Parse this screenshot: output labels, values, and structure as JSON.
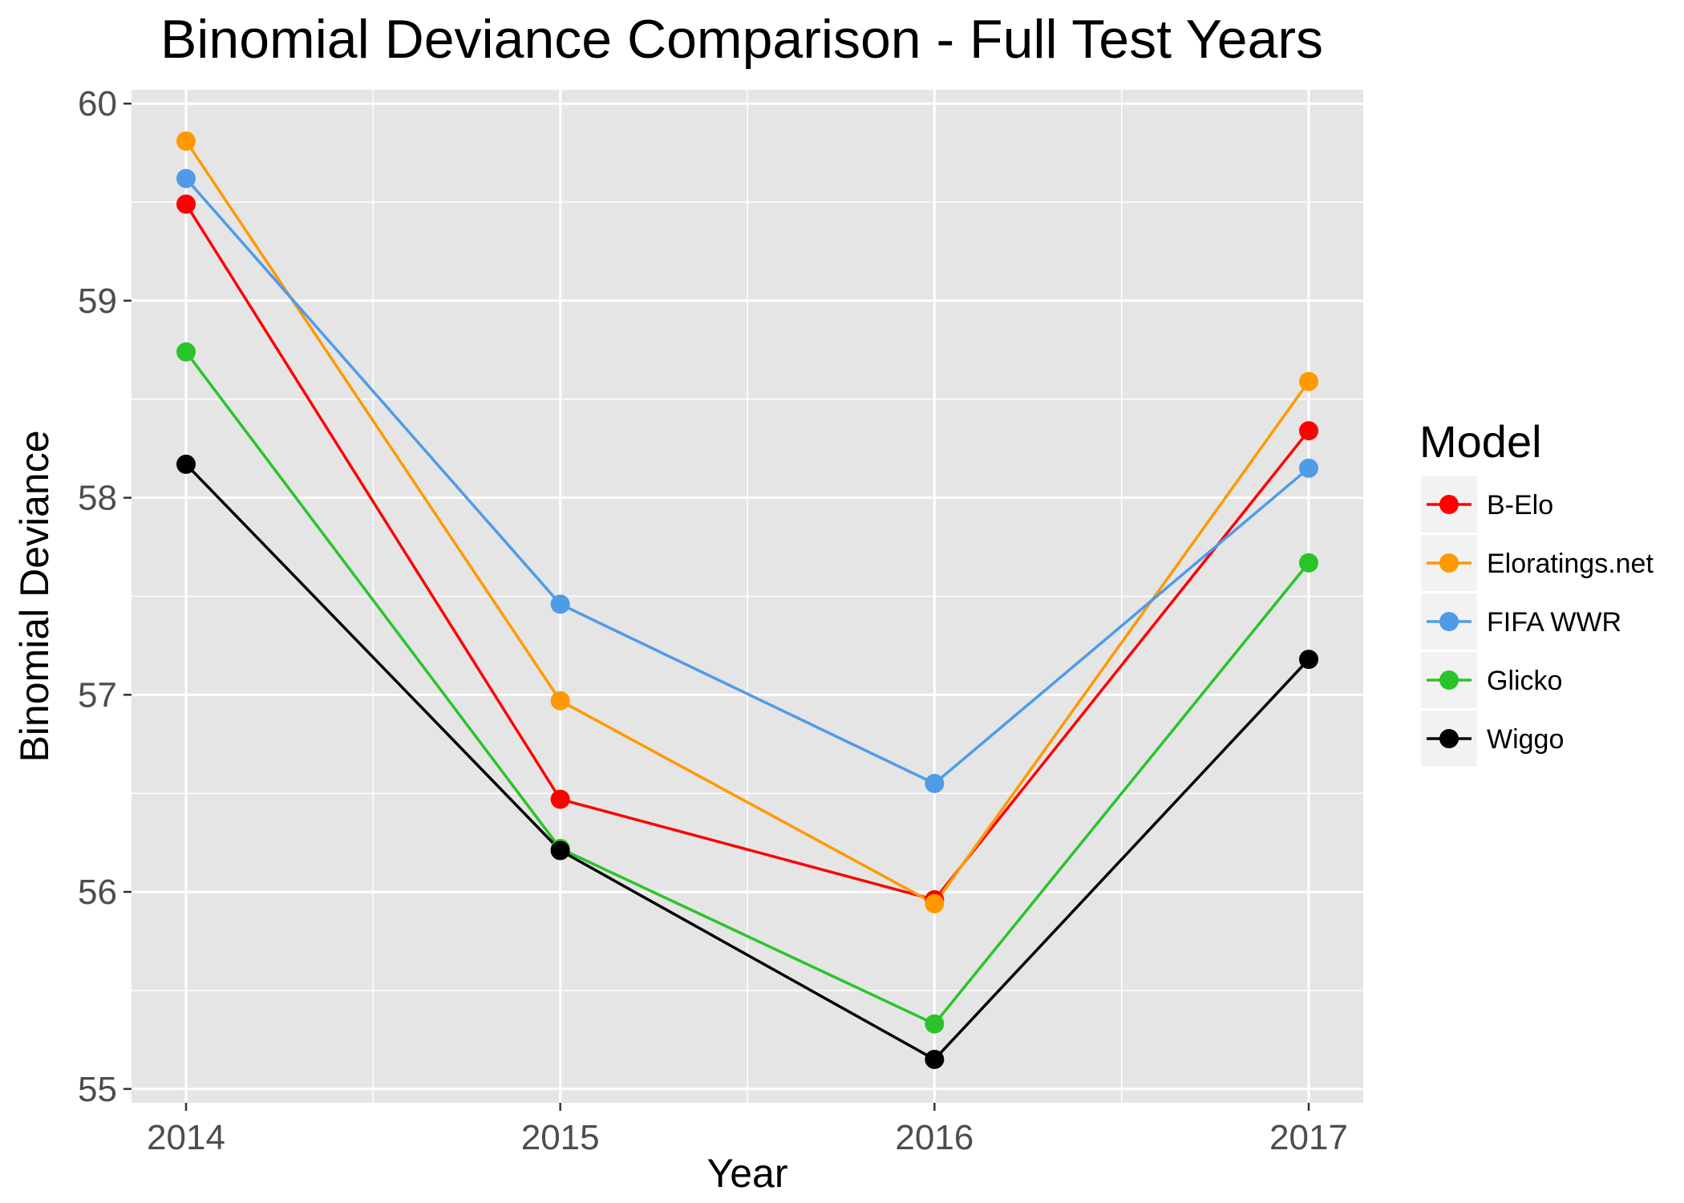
{
  "chart_data": {
    "type": "line",
    "title": "Binomial Deviance Comparison - Full Test Years",
    "xlabel": "Year",
    "ylabel": "Binomial Deviance",
    "x": [
      2014,
      2015,
      2016,
      2017
    ],
    "x_tick_labels": [
      "2014",
      "2015",
      "2016",
      "2017"
    ],
    "y_tick_labels": [
      "55",
      "56",
      "57",
      "58",
      "59",
      "60"
    ],
    "ylim": [
      54.93,
      60.07
    ],
    "grid": true,
    "legend": {
      "title": "Model",
      "placement": "right"
    },
    "series": [
      {
        "name": "B-Elo",
        "color": "#ff0000",
        "values": [
          59.49,
          56.47,
          55.96,
          58.34
        ]
      },
      {
        "name": "Eloratings.net",
        "color": "#ff9900",
        "values": [
          59.81,
          56.97,
          55.94,
          58.59
        ]
      },
      {
        "name": "FIFA WWR",
        "color": "#4f9be8",
        "values": [
          59.62,
          57.46,
          56.55,
          58.15
        ]
      },
      {
        "name": "Glicko",
        "color": "#2ac42a",
        "values": [
          58.74,
          56.22,
          55.33,
          57.67
        ]
      },
      {
        "name": "Wiggo",
        "color": "#000000",
        "values": [
          58.17,
          56.21,
          55.15,
          57.18
        ]
      }
    ]
  }
}
